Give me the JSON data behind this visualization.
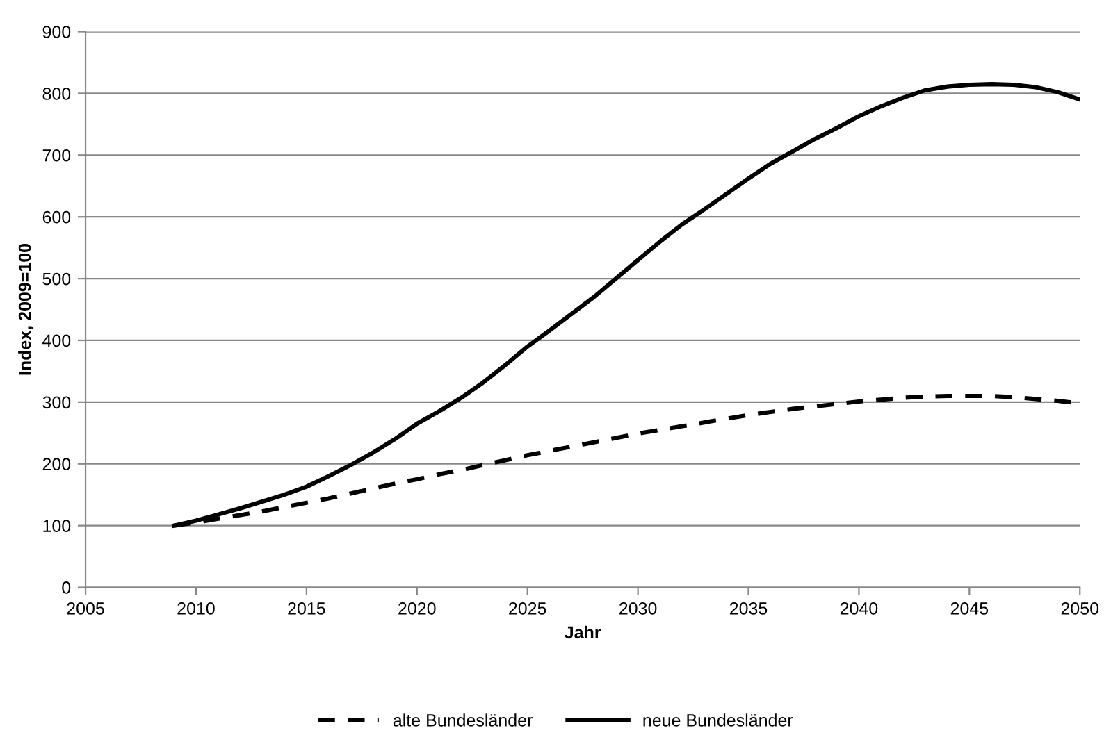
{
  "chart_data": {
    "type": "line",
    "xlabel": "Jahr",
    "ylabel": "Index, 2009=100",
    "x": [
      2009,
      2010,
      2011,
      2012,
      2013,
      2014,
      2015,
      2016,
      2017,
      2018,
      2019,
      2020,
      2021,
      2022,
      2023,
      2024,
      2025,
      2026,
      2027,
      2028,
      2029,
      2030,
      2031,
      2032,
      2033,
      2034,
      2035,
      2036,
      2037,
      2038,
      2039,
      2040,
      2041,
      2042,
      2043,
      2044,
      2045,
      2046,
      2047,
      2048,
      2049,
      2050
    ],
    "series": [
      {
        "name": "alte Bundesländer",
        "color": "#000000",
        "line_style": "dashed",
        "values": [
          100,
          105,
          111,
          117,
          123,
          130,
          137,
          144,
          152,
          160,
          168,
          175,
          183,
          190,
          198,
          206,
          214,
          221,
          228,
          235,
          242,
          249,
          255,
          261,
          267,
          273,
          279,
          284,
          289,
          293,
          297,
          301,
          304,
          307,
          309,
          310,
          310,
          310,
          308,
          305,
          302,
          298
        ]
      },
      {
        "name": "neue Bundesländer",
        "color": "#000000",
        "line_style": "solid",
        "values": [
          100,
          108,
          118,
          128,
          139,
          150,
          163,
          180,
          198,
          218,
          240,
          265,
          285,
          307,
          332,
          360,
          390,
          416,
          443,
          470,
          500,
          530,
          560,
          588,
          612,
          637,
          662,
          686,
          706,
          726,
          744,
          763,
          779,
          793,
          805,
          811,
          814,
          815,
          814,
          810,
          802,
          790
        ]
      }
    ],
    "xlim": [
      2005,
      2050
    ],
    "xticks": [
      2005,
      2010,
      2015,
      2020,
      2025,
      2030,
      2035,
      2040,
      2045,
      2050
    ],
    "ylim": [
      0,
      900
    ],
    "yticks": [
      0,
      100,
      200,
      300,
      400,
      500,
      600,
      700,
      800,
      900
    ],
    "grid": "y",
    "legend": "bottom",
    "marker": "none"
  }
}
